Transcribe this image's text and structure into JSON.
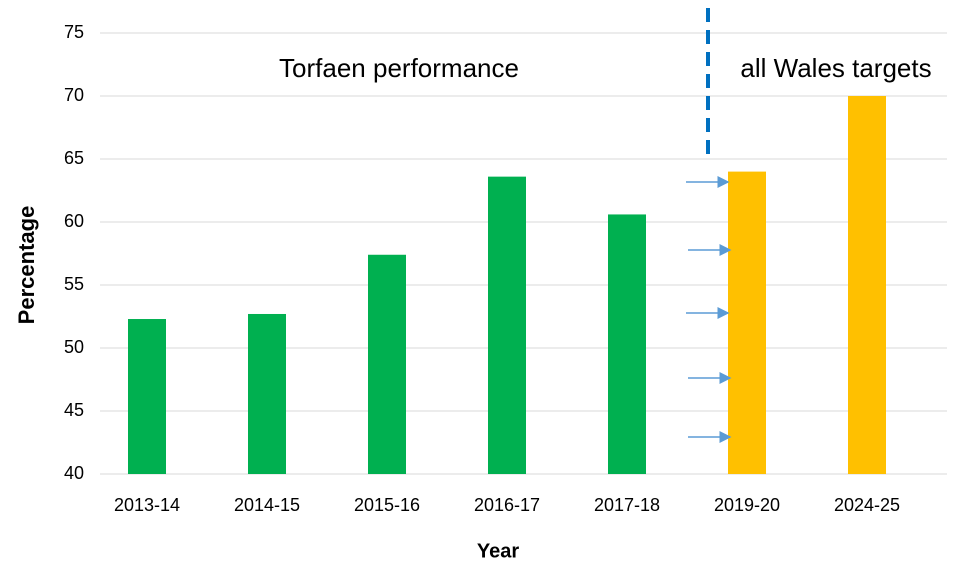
{
  "chart_data": {
    "type": "bar",
    "categories": [
      "2013-14",
      "2014-15",
      "2015-16",
      "2016-17",
      "2017-18",
      "2019-20",
      "2024-25"
    ],
    "values": [
      52.3,
      52.7,
      57.4,
      63.6,
      60.6,
      64,
      70
    ],
    "colors": [
      "#00b050",
      "#00b050",
      "#00b050",
      "#00b050",
      "#00b050",
      "#ffc000",
      "#ffc000"
    ],
    "ylim": [
      40,
      75
    ],
    "yticks": [
      40,
      45,
      50,
      55,
      60,
      65,
      70,
      75
    ],
    "grid": true,
    "x_label": "Year",
    "y_label": "Percentage",
    "annotations": [
      "Torfaen performance",
      "all Wales targets"
    ]
  }
}
